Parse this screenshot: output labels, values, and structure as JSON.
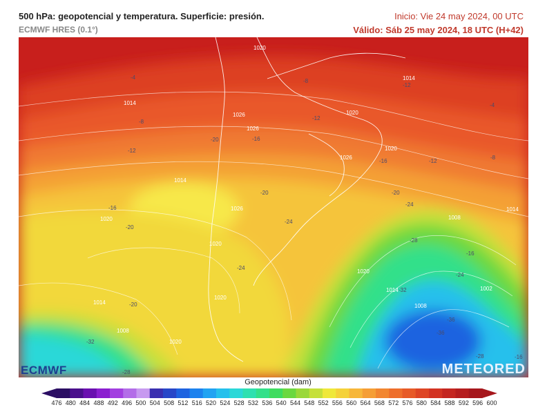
{
  "header": {
    "title": "500 hPa: geopotencial y temperatura. Superficie: presión.",
    "model": "ECMWF HRES (0.1°)",
    "init": "Inicio: Vie 24 may 2024, 00 UTC",
    "valid": "Válido: Sáb 25 may 2024, 18 UTC (H+42)"
  },
  "map": {
    "pressure_labels": [
      "1020",
      "1014",
      "1026",
      "1020",
      "1014",
      "1026",
      "1020",
      "1014",
      "1020",
      "1008",
      "1026",
      "1020",
      "1014",
      "1008",
      "1002",
      "1020",
      "1014",
      "1020",
      "1008",
      "1026",
      "1020",
      "1014"
    ],
    "temperature_labels": [
      "-4",
      "-8",
      "-12",
      "-16",
      "-20",
      "-24",
      "-28",
      "-32",
      "-36",
      "-8",
      "-12",
      "-16",
      "-20",
      "-24",
      "-28",
      "-32",
      "-36",
      "-24",
      "-20",
      "-16",
      "-12",
      "-8",
      "-4",
      "-12",
      "-16",
      "-20",
      "-24",
      "-28",
      "-20",
      "-16"
    ]
  },
  "branding": {
    "left_logo": "ECMWF",
    "right_logo": "METEORED"
  },
  "colorbar": {
    "title": "Geopotencial (dam)",
    "ticks": [
      "476",
      "480",
      "484",
      "488",
      "492",
      "496",
      "500",
      "504",
      "508",
      "512",
      "516",
      "520",
      "524",
      "528",
      "532",
      "536",
      "540",
      "544",
      "548",
      "552",
      "556",
      "560",
      "564",
      "568",
      "572",
      "576",
      "580",
      "584",
      "588",
      "592",
      "596",
      "600"
    ],
    "colors": [
      "#2b0e63",
      "#4a0f8c",
      "#6a0fb0",
      "#8b1ed0",
      "#a23fe0",
      "#b36de8",
      "#c79af0",
      "#3a2fb0",
      "#2846c8",
      "#1e63e0",
      "#1d82ee",
      "#21a3f2",
      "#25c0ec",
      "#2bd8d8",
      "#2ee0b0",
      "#33e08a",
      "#3fdc5f",
      "#6bd840",
      "#9ad83a",
      "#c6e03b",
      "#efe83a",
      "#f5d23a",
      "#f7b73a",
      "#f59e35",
      "#f28630",
      "#ee6e2b",
      "#e75a27",
      "#de4524",
      "#d33322",
      "#c42620",
      "#b51d1e",
      "#a6171c"
    ]
  }
}
